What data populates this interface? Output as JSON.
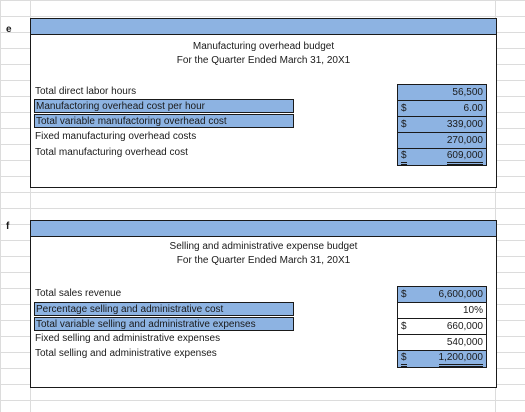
{
  "row_labels": {
    "e": "e",
    "f": "f"
  },
  "manufacturing": {
    "title": "Manufacturing overhead budget",
    "subtitle": "For the Quarter Ended March 31, 20X1",
    "rows": [
      {
        "label": "Total direct labor hours",
        "currency": "",
        "value": "56,500"
      },
      {
        "label": "Manufactoring overhead cost per hour",
        "currency": "$",
        "value": "6.00"
      },
      {
        "label": "Total variable manufactoring overhead cost",
        "currency": "$",
        "value": "339,000"
      },
      {
        "label": "Fixed manufacturing overhead costs",
        "currency": "",
        "value": "270,000"
      },
      {
        "label": "Total manufacturing overhead cost",
        "currency": "$",
        "value": "609,000"
      }
    ]
  },
  "selling": {
    "title": "Selling and administrative expense budget",
    "subtitle": "For the Quarter Ended March 31, 20X1",
    "rows": [
      {
        "label": "Total sales revenue",
        "currency": "$",
        "value": "6,600,000"
      },
      {
        "label": "Percentage selling and administrative cost",
        "currency": "",
        "value": "10%"
      },
      {
        "label": "Total variable selling and administrative expenses",
        "currency": "$",
        "value": "660,000"
      },
      {
        "label": "Fixed selling and administrative expenses",
        "currency": "",
        "value": "540,000"
      },
      {
        "label": "Total selling and administrative expenses",
        "currency": "$",
        "value": "1,200,000"
      }
    ]
  },
  "colors": {
    "highlight": "#8db3e2",
    "grid": "#dcdcdc",
    "border": "#1a1a1a"
  }
}
